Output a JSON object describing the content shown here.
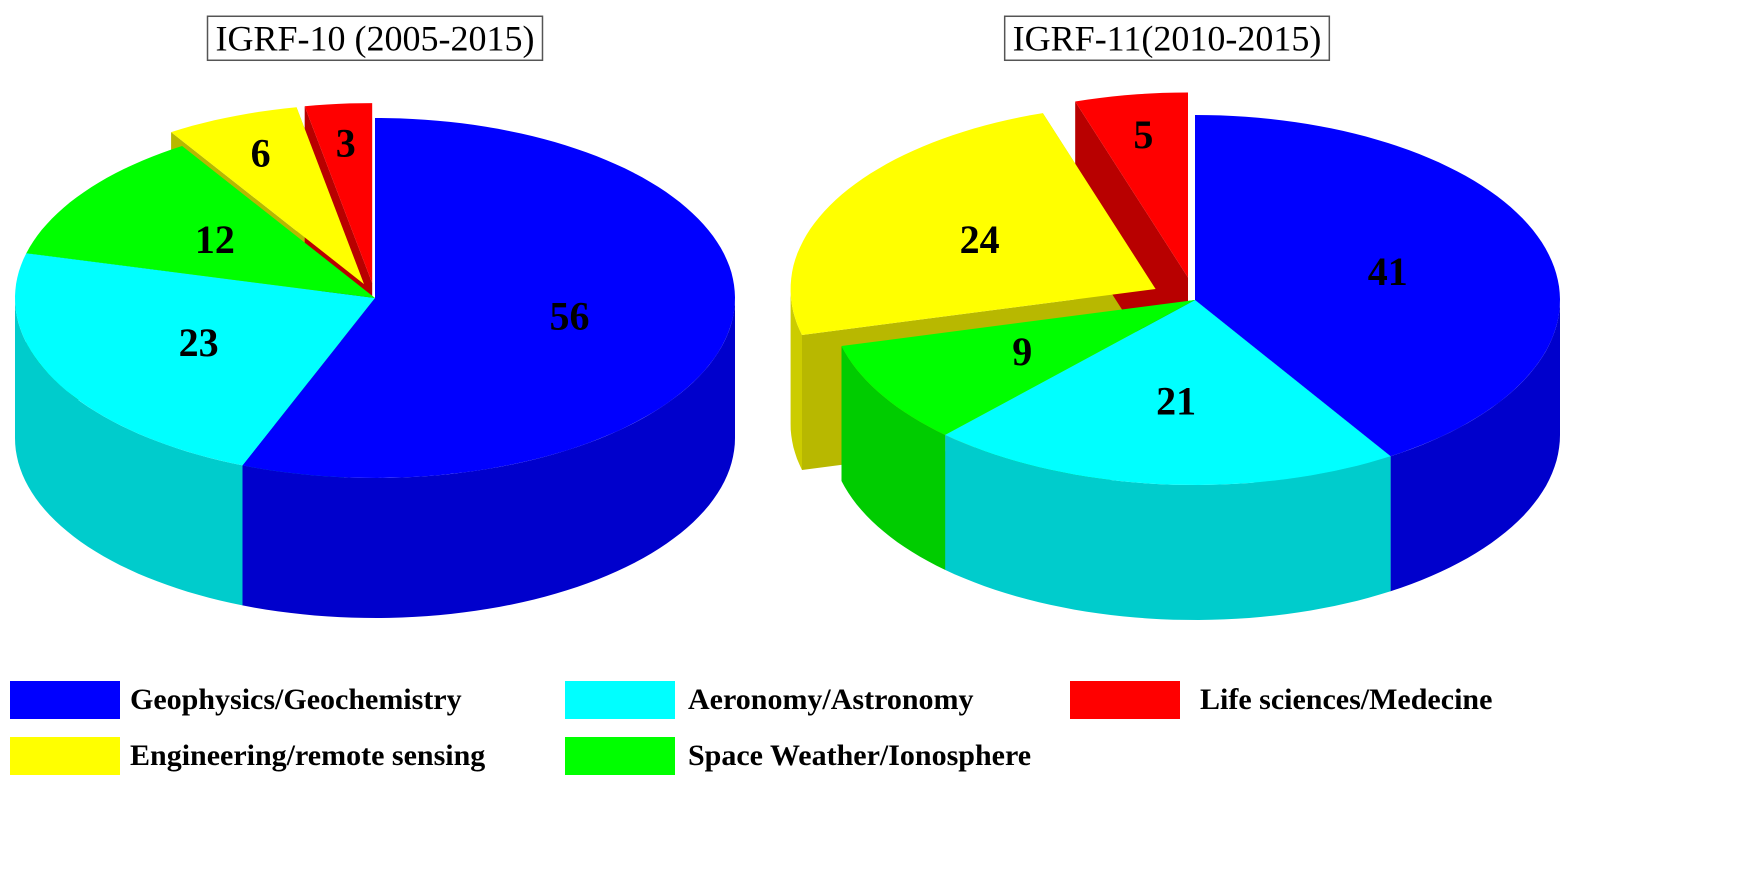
{
  "chart_data": [
    {
      "type": "pie",
      "title": "IGRF-10 (2005-2015)",
      "values": [
        56,
        23,
        12,
        6,
        3
      ],
      "exploded": [
        false,
        false,
        false,
        true,
        true
      ]
    },
    {
      "type": "pie",
      "title": "IGRF-11(2010-2015)",
      "values": [
        41,
        21,
        9,
        24,
        5
      ],
      "exploded": [
        false,
        false,
        false,
        true,
        true
      ]
    }
  ],
  "legend": {
    "names": [
      "Geophysics/Geochemistry",
      "Aeronomy/Astronomy",
      "Space Weather/Ionosphere",
      "Engineering/remote sensing",
      "Life sciences/Medecine"
    ],
    "colors": [
      "#0000ff",
      "#00ffff",
      "#00ff00",
      "#ffff00",
      "#ff0000"
    ]
  }
}
